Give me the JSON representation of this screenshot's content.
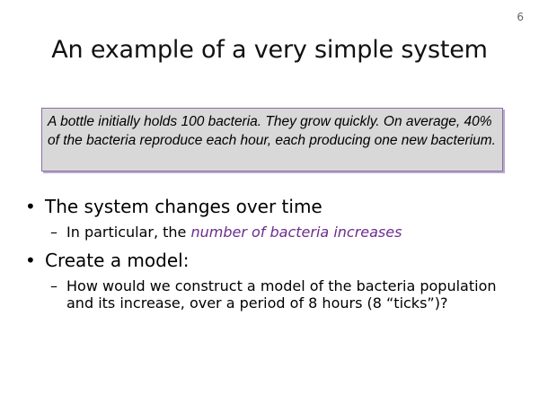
{
  "slide": {
    "number": "6",
    "title": "An example of a very simple system"
  },
  "callout": {
    "text": "A bottle initially holds 100 bacteria.  They grow quickly.  On average, 40% of the bacteria reproduce each hour, each producing one new bacterium."
  },
  "bullets": [
    {
      "text": "The system changes over time",
      "subs": [
        {
          "prefix": "In particular, the ",
          "emphasis": "number of bacteria increases"
        }
      ]
    },
    {
      "text": "Create a model:",
      "subs": [
        {
          "text": "How would we construct a model of the bacteria population and its increase, over a period of 8 hours (8 “ticks”)?"
        }
      ]
    }
  ],
  "colors": {
    "emphasis": "#6b2c8e",
    "callout_background": "#d8d8d8",
    "callout_border": "#8a6fa8"
  }
}
